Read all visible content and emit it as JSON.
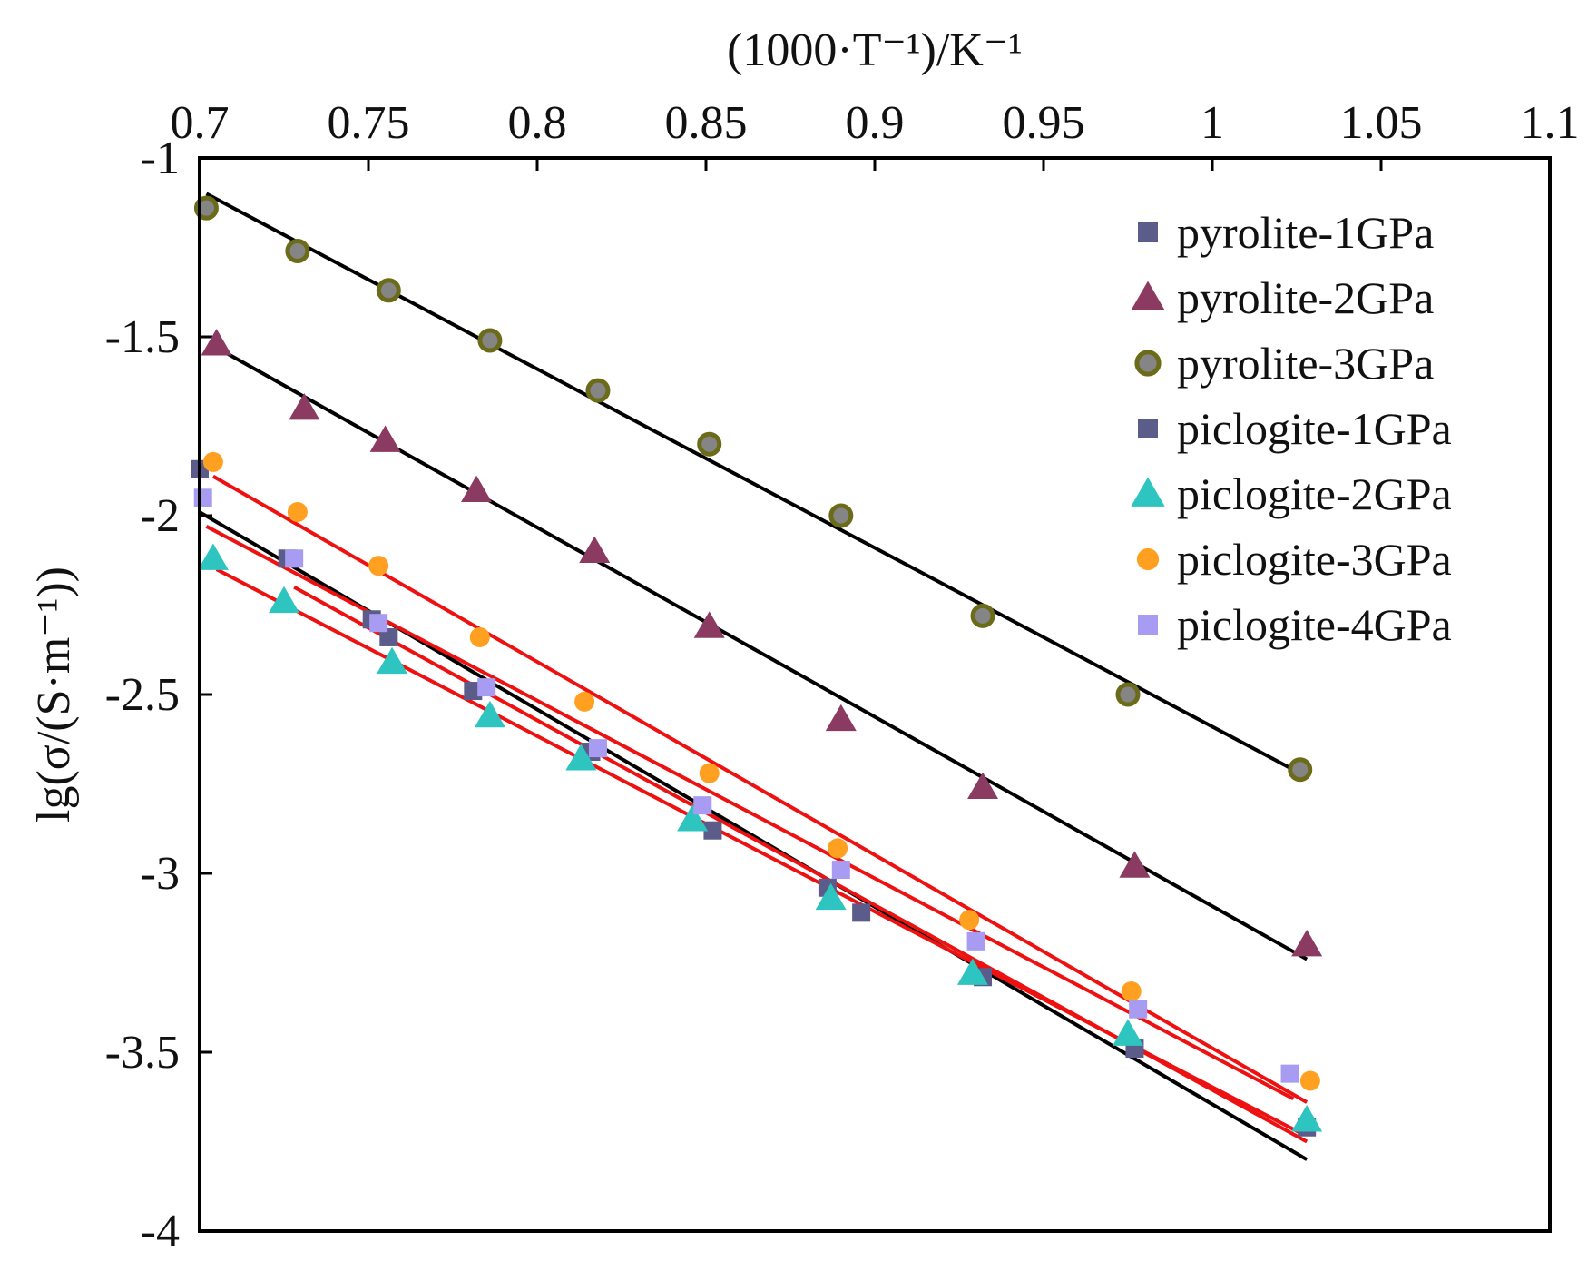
{
  "chart_data": {
    "type": "scatter",
    "title": "",
    "xlabel": "(1000·T⁻¹)/K⁻¹",
    "ylabel": "lg(σ/(S·m⁻¹))",
    "xlim": [
      0.7,
      1.1
    ],
    "ylim": [
      -4,
      -1
    ],
    "xticks": [
      0.7,
      0.75,
      0.8,
      0.85,
      0.9,
      0.95,
      1,
      1.05,
      1.1
    ],
    "xtick_labels": [
      "0.7",
      "0.75",
      "0.8",
      "0.85",
      "0.9",
      "0.95",
      "1",
      "1.05",
      "1.1"
    ],
    "yticks": [
      -1,
      -1.5,
      -2,
      -2.5,
      -3,
      -3.5,
      -4
    ],
    "ytick_labels": [
      "-1",
      "-1.5",
      "-2",
      "-2.5",
      "-3",
      "-3.5",
      "-4"
    ],
    "x_axis_position": "top",
    "grid": false,
    "legend_position": "top-right",
    "series": [
      {
        "name": "pyrolite-1GPa",
        "marker": "square",
        "color": "#5c5c8a",
        "x": [],
        "y": []
      },
      {
        "name": "pyrolite-2GPa",
        "marker": "triangle",
        "color": "#8b3a62",
        "x": [
          0.705,
          0.731,
          0.755,
          0.782,
          0.817,
          0.851,
          0.89,
          0.932,
          0.977,
          1.028
        ],
        "y": [
          -1.52,
          -1.7,
          -1.79,
          -1.93,
          -2.1,
          -2.31,
          -2.57,
          -2.76,
          -2.98,
          -3.2
        ],
        "fit": {
          "x": [
            0.705,
            1.028
          ],
          "y": [
            -1.53,
            -3.24
          ],
          "color": "#000000"
        }
      },
      {
        "name": "pyrolite-3GPa",
        "marker": "circle",
        "color": "#7a7a22",
        "x": [
          0.702,
          0.729,
          0.756,
          0.786,
          0.818,
          0.851,
          0.89,
          0.932,
          0.975,
          1.026
        ],
        "y": [
          -1.14,
          -1.26,
          -1.37,
          -1.51,
          -1.65,
          -1.8,
          -2.0,
          -2.28,
          -2.5,
          -2.71
        ],
        "fit": {
          "x": [
            0.702,
            1.026
          ],
          "y": [
            -1.1,
            -2.72
          ],
          "color": "#000000"
        }
      },
      {
        "name": "piclogite-1GPa",
        "marker": "square",
        "color": "#5c5c8a",
        "x": [
          0.7,
          0.726,
          0.751,
          0.756,
          0.781,
          0.816,
          0.852,
          0.886,
          0.896,
          0.932,
          0.977,
          1.028
        ],
        "y": [
          -1.87,
          -2.12,
          -2.29,
          -2.34,
          -2.49,
          -2.66,
          -2.88,
          -3.04,
          -3.11,
          -3.29,
          -3.49,
          -3.71
        ],
        "fit": {
          "x": [
            0.7,
            1.028
          ],
          "y": [
            -1.99,
            -3.8
          ],
          "color": "#000000"
        }
      },
      {
        "name": "piclogite-2GPa",
        "marker": "triangle",
        "color": "#2ec4c0",
        "x": [
          0.704,
          0.725,
          0.757,
          0.786,
          0.813,
          0.846,
          0.887,
          0.929,
          0.975,
          1.028
        ],
        "y": [
          -2.12,
          -2.24,
          -2.41,
          -2.56,
          -2.68,
          -2.85,
          -3.07,
          -3.28,
          -3.45,
          -3.69
        ],
        "fit": {
          "x": [
            0.705,
            1.027
          ],
          "y": [
            -2.15,
            -3.73
          ],
          "color": "#ee1111"
        }
      },
      {
        "name": "piclogite-3GPa",
        "marker": "circle",
        "color": "#ffa020",
        "x": [
          0.704,
          0.729,
          0.753,
          0.783,
          0.814,
          0.851,
          0.889,
          0.928,
          0.976,
          1.029
        ],
        "y": [
          -1.85,
          -1.99,
          -2.14,
          -2.34,
          -2.52,
          -2.72,
          -2.93,
          -3.13,
          -3.33,
          -3.58
        ],
        "fit": {
          "x": [
            0.704,
            1.028
          ],
          "y": [
            -1.89,
            -3.64
          ],
          "color": "#ee1111"
        }
      },
      {
        "name": "piclogite-4GPa",
        "marker": "square",
        "color": "#a89cf2",
        "x": [
          0.701,
          0.728,
          0.753,
          0.785,
          0.818,
          0.849,
          0.89,
          0.93,
          0.978,
          1.023
        ],
        "y": [
          -1.95,
          -2.12,
          -2.3,
          -2.48,
          -2.65,
          -2.81,
          -2.99,
          -3.19,
          -3.38,
          -3.56
        ],
        "fit": {
          "x": [
            0.702,
            1.024
          ],
          "y": [
            -2.03,
            -3.63
          ],
          "color": "#ee1111"
        }
      }
    ],
    "extra_fit_lines": [
      {
        "x": [
          0.728,
          1.028
        ],
        "y": [
          -2.2,
          -3.75
        ],
        "color": "#ee1111"
      }
    ]
  }
}
